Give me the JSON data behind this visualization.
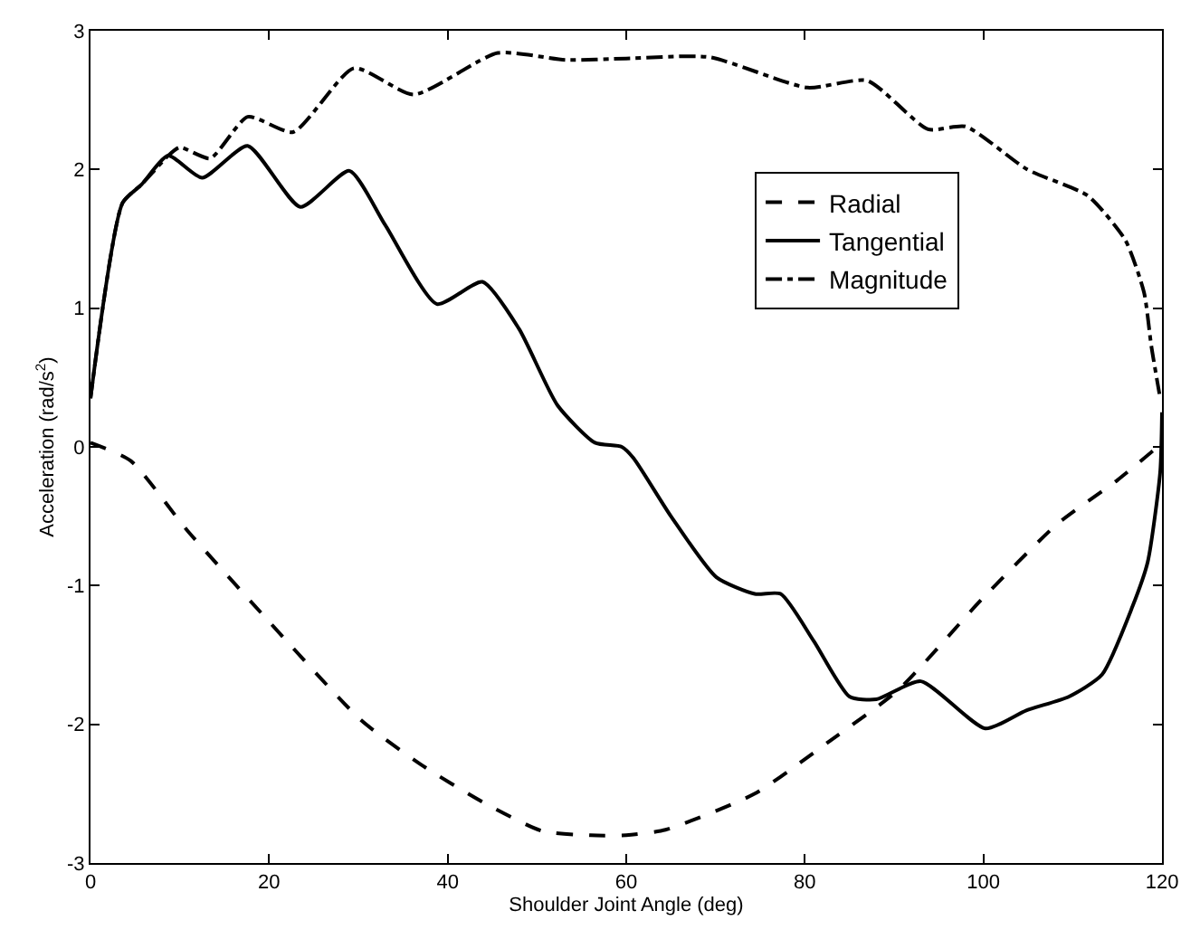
{
  "chart_data": {
    "type": "line",
    "xlabel": "Shoulder Joint Angle (deg)",
    "ylabel": "Acceleration (rad/s$^{2}$)",
    "xlim": [
      0,
      120
    ],
    "xticks": [
      0,
      20,
      40,
      60,
      80,
      100,
      120
    ],
    "ylim": [
      -3,
      3
    ],
    "yticks": [
      -3,
      -2,
      -1,
      0,
      1,
      2,
      3
    ],
    "legend": "right",
    "marker": "none",
    "series": [
      {
        "name": "Radial",
        "color": "#000000",
        "line_style": "dashed",
        "x": [
          0,
          4.5,
          10.8,
          19.3,
          30.3,
          37,
          43.9,
          50.6,
          56,
          60,
          64.4,
          74.4,
          82.8,
          90.5,
          99.8,
          108.2,
          115,
          119.5,
          120
        ],
        "values": [
          0.03,
          -0.1,
          -0.6,
          -1.21,
          -1.97,
          -2.29,
          -2.56,
          -2.77,
          -2.8,
          -2.8,
          -2.76,
          -2.5,
          -2.12,
          -1.75,
          -1.1,
          -0.56,
          -0.24,
          0.0,
          0.03
        ]
      },
      {
        "name": "Tangential",
        "color": "#000000",
        "line_style": "solid",
        "x": [
          0,
          3.6,
          5.7,
          8.7,
          12.5,
          17.6,
          23.5,
          29,
          33,
          38.8,
          43.9,
          48,
          52.3,
          56.5,
          59.5,
          60.8,
          65,
          70.1,
          74.4,
          77.3,
          81,
          85,
          88,
          93,
          100.2,
          104.8,
          109.6,
          113.3,
          116.7,
          118.4,
          119.8,
          120
        ],
        "values": [
          0.35,
          1.76,
          1.89,
          2.1,
          1.94,
          2.17,
          1.73,
          1.99,
          1.6,
          1.03,
          1.19,
          0.85,
          0.3,
          0.03,
          0.0,
          -0.08,
          -0.5,
          -0.94,
          -1.06,
          -1.06,
          -1.4,
          -1.8,
          -1.82,
          -1.69,
          -2.03,
          -1.9,
          -1.8,
          -1.64,
          -1.15,
          -0.83,
          -0.18,
          0.25
        ]
      },
      {
        "name": "Magnitude",
        "color": "#000000",
        "line_style": "dashdot",
        "x": [
          0,
          3.6,
          5.7,
          8.7,
          10,
          13.4,
          17.6,
          22.7,
          29.5,
          36.2,
          45.6,
          53.2,
          60,
          69.3,
          80.3,
          87,
          93.8,
          98,
          104.9,
          111.7,
          115.9,
          118,
          118.8,
          119.8
        ],
        "values": [
          0.35,
          1.76,
          1.89,
          2.1,
          2.16,
          2.08,
          2.38,
          2.27,
          2.73,
          2.54,
          2.84,
          2.79,
          2.8,
          2.81,
          2.59,
          2.64,
          2.29,
          2.31,
          2.0,
          1.81,
          1.49,
          1.11,
          0.73,
          0.35
        ]
      }
    ]
  }
}
